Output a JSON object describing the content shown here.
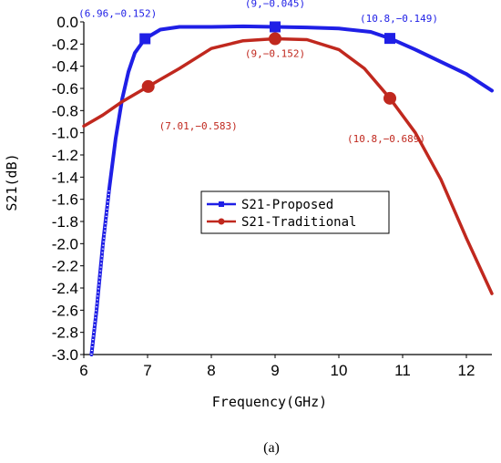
{
  "chart_data": {
    "type": "line",
    "xlabel": "Frequency(GHz)",
    "ylabel": "S21(dB)",
    "xlim": [
      6,
      12.4
    ],
    "ylim": [
      -3.0,
      0.0
    ],
    "x_ticks": [
      "6",
      "7",
      "8",
      "9",
      "10",
      "11",
      "12"
    ],
    "y_ticks": [
      "0.0",
      "-0.2",
      "-0.4",
      "-0.6",
      "-0.8",
      "-1.0",
      "-1.2",
      "-1.4",
      "-1.6",
      "-1.8",
      "-2.0",
      "-2.2",
      "-2.4",
      "-2.6",
      "-2.8",
      "-3.0"
    ],
    "legend_position": "center",
    "series": [
      {
        "name": "S21-Proposed",
        "color": "#1f1fe6",
        "x": [
          6.12,
          6.2,
          6.3,
          6.4,
          6.5,
          6.6,
          6.7,
          6.8,
          6.96,
          7.2,
          7.5,
          8.0,
          8.5,
          9.0,
          9.5,
          10.0,
          10.5,
          10.8,
          11.2,
          11.6,
          12.0,
          12.4
        ],
        "y": [
          -3.0,
          -2.6,
          -2.0,
          -1.5,
          -1.05,
          -0.7,
          -0.45,
          -0.28,
          -0.152,
          -0.07,
          -0.045,
          -0.045,
          -0.04,
          -0.045,
          -0.05,
          -0.06,
          -0.09,
          -0.149,
          -0.25,
          -0.36,
          -0.47,
          -0.62
        ]
      },
      {
        "name": "S21-Traditional",
        "color": "#c0281e",
        "x": [
          6.0,
          6.3,
          6.6,
          7.01,
          7.5,
          8.0,
          8.5,
          9.0,
          9.5,
          10.0,
          10.4,
          10.8,
          11.2,
          11.6,
          12.0,
          12.4
        ],
        "y": [
          -0.94,
          -0.84,
          -0.72,
          -0.583,
          -0.42,
          -0.24,
          -0.17,
          -0.152,
          -0.16,
          -0.25,
          -0.42,
          -0.689,
          -1.0,
          -1.42,
          -1.95,
          -2.45
        ]
      }
    ],
    "annotations": [
      {
        "series": 0,
        "x": 6.96,
        "y": -0.152,
        "label": "(6.96,−0.152)"
      },
      {
        "series": 0,
        "x": 9,
        "y": -0.045,
        "label": "(9,−0.045)"
      },
      {
        "series": 0,
        "x": 10.8,
        "y": -0.149,
        "label": "(10.8,−0.149)"
      },
      {
        "series": 1,
        "x": 7.01,
        "y": -0.583,
        "label": "(7.01,−0.583)"
      },
      {
        "series": 1,
        "x": 9,
        "y": -0.152,
        "label": "(9,−0.152)"
      },
      {
        "series": 1,
        "x": 10.8,
        "y": -0.689,
        "label": "(10.8,−0.689)"
      }
    ]
  },
  "caption": "(a)"
}
